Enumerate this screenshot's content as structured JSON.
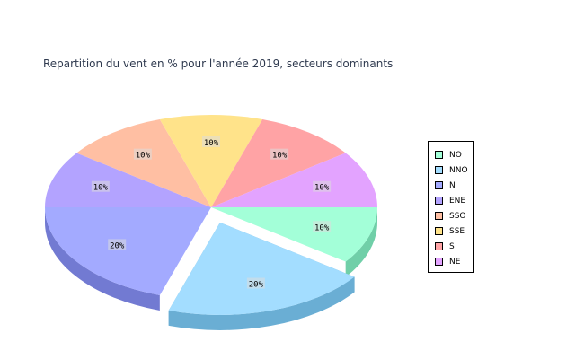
{
  "chart_data": {
    "type": "pie",
    "title": "Repartition du vent en % pour l'année 2019, secteurs dominants",
    "slices": [
      {
        "label": "NO",
        "value": 10,
        "display": "10%",
        "color": "#a3ffd8",
        "side": "#70cfa8",
        "explode": false
      },
      {
        "label": "NNO",
        "value": 20,
        "display": "20%",
        "color": "#a3ddff",
        "side": "#6aaed4",
        "explode": true
      },
      {
        "label": "N",
        "value": 20,
        "display": "20%",
        "color": "#a3aaff",
        "side": "#727ad2",
        "explode": false
      },
      {
        "label": "ENE",
        "value": 10,
        "display": "10%",
        "color": "#b3a3ff",
        "side": "#8474d0",
        "explode": false
      },
      {
        "label": "SSO",
        "value": 10,
        "display": "10%",
        "color": "#ffbfa3",
        "side": "#d49276",
        "explode": false
      },
      {
        "label": "SSE",
        "value": 10,
        "display": "10%",
        "color": "#ffe38a",
        "side": "#d4b860",
        "explode": false
      },
      {
        "label": "S",
        "value": 10,
        "display": "10%",
        "color": "#ffa3a5",
        "side": "#d47476",
        "explode": false
      },
      {
        "label": "NE",
        "value": 10,
        "display": "10%",
        "color": "#e3a3ff",
        "side": "#b474d4",
        "explode": false
      }
    ],
    "legend_position": "right"
  }
}
